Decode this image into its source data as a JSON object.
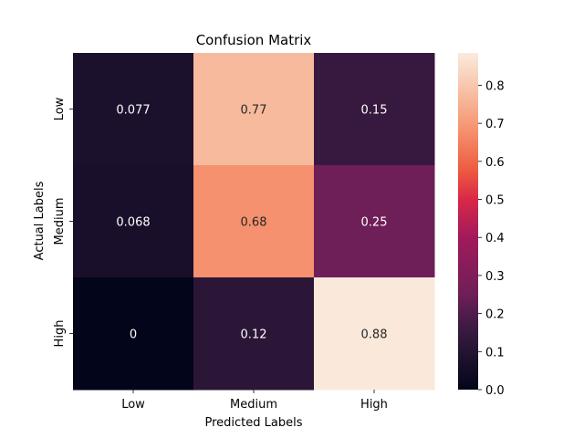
{
  "chart_data": {
    "type": "heatmap",
    "title": "Confusion Matrix",
    "xlabel": "Predicted Labels",
    "ylabel": "Actual Labels",
    "x_categories": [
      "Low",
      "Medium",
      "High"
    ],
    "y_categories": [
      "Low",
      "Medium",
      "High"
    ],
    "values": [
      [
        0.077,
        0.77,
        0.15
      ],
      [
        0.068,
        0.68,
        0.25
      ],
      [
        0,
        0.12,
        0.88
      ]
    ],
    "annotations": [
      [
        "0.077",
        "0.77",
        "0.15"
      ],
      [
        "0.068",
        "0.68",
        "0.25"
      ],
      [
        "0",
        "0.12",
        "0.88"
      ]
    ],
    "colorbar": {
      "range": [
        0,
        0.885
      ],
      "ticks": [
        "0.0",
        "0.1",
        "0.2",
        "0.3",
        "0.4",
        "0.5",
        "0.6",
        "0.7",
        "0.8"
      ],
      "tick_values": [
        0,
        0.1,
        0.2,
        0.3,
        0.4,
        0.5,
        0.6,
        0.7,
        0.8
      ],
      "colormap": "rocket"
    }
  }
}
